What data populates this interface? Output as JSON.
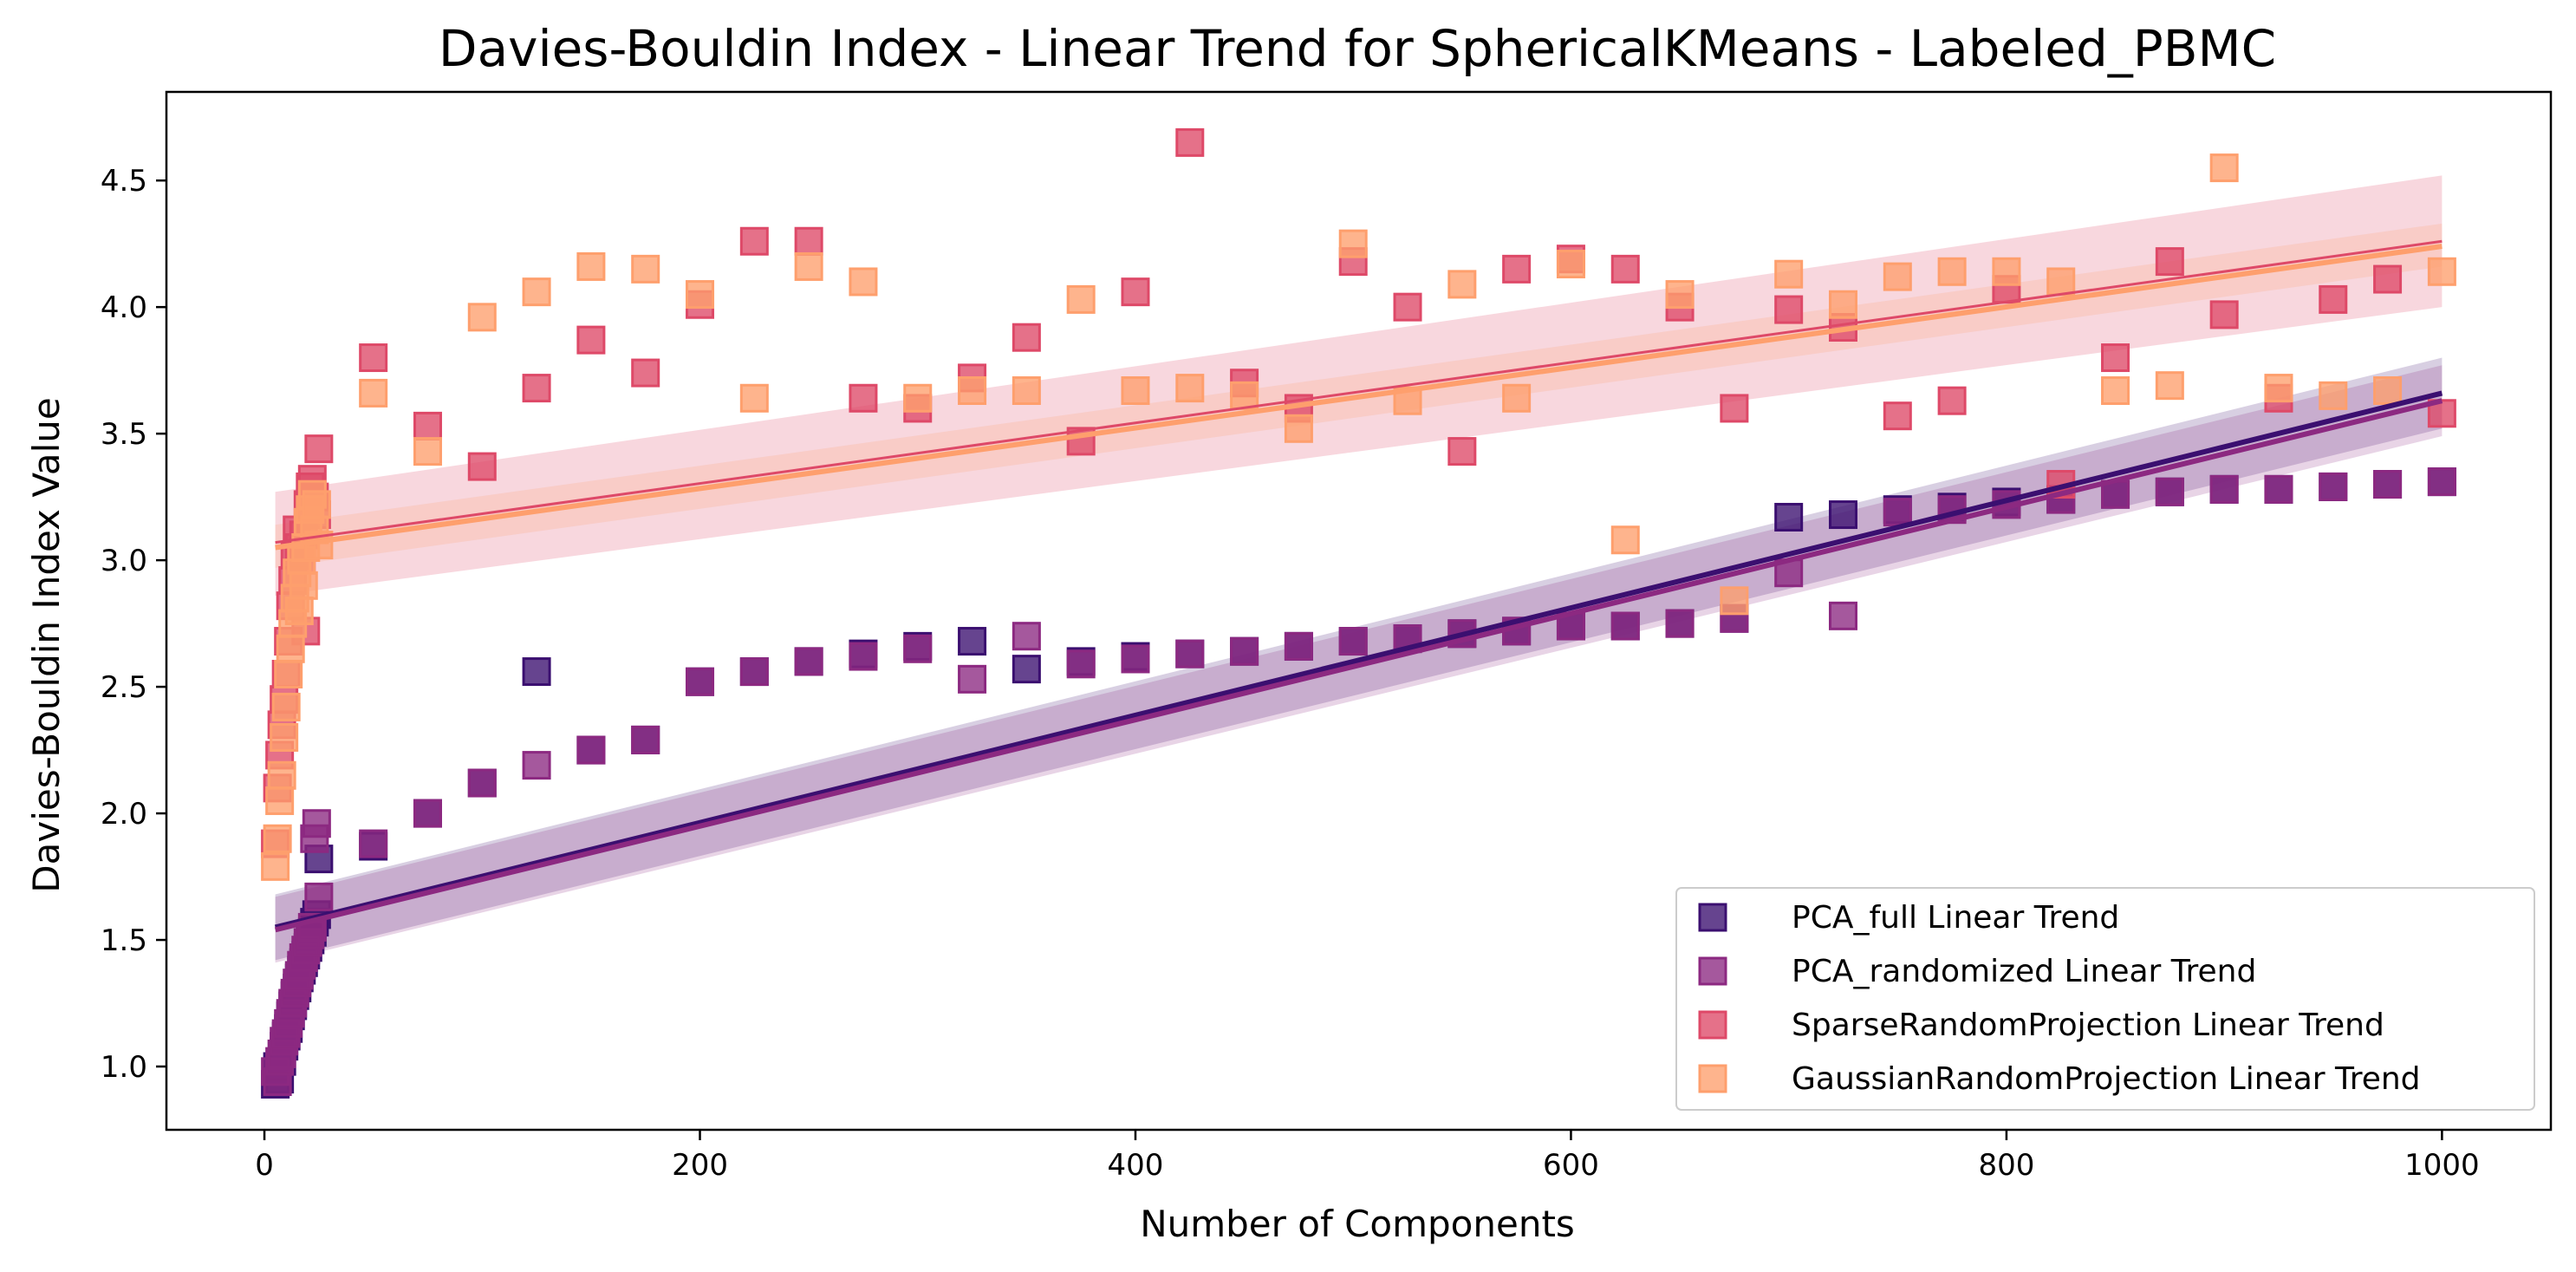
{
  "chart_data": {
    "type": "scatter",
    "title": "Davies-Bouldin Index - Linear Trend for SphericalKMeans - Labeled_PBMC",
    "xlabel": "Number of Components",
    "ylabel": "Davies-Bouldin Index Value",
    "xlim": [
      -45,
      1050
    ],
    "ylim": [
      0.75,
      4.85
    ],
    "xticks": [
      0,
      200,
      400,
      600,
      800,
      1000
    ],
    "yticks": [
      1.0,
      1.5,
      2.0,
      2.5,
      3.0,
      3.5,
      4.0,
      4.5
    ],
    "grid": false,
    "legend_position": "bottom-right",
    "series": [
      {
        "name": "PCA_full Linear Trend",
        "color": "#3b0f70",
        "marker": "square",
        "points": [
          [
            5,
            0.93
          ],
          [
            6,
            1.0
          ],
          [
            7,
            0.95
          ],
          [
            8,
            1.02
          ],
          [
            9,
            1.08
          ],
          [
            10,
            1.12
          ],
          [
            11,
            1.15
          ],
          [
            12,
            1.2
          ],
          [
            13,
            1.24
          ],
          [
            14,
            1.28
          ],
          [
            15,
            1.31
          ],
          [
            16,
            1.35
          ],
          [
            17,
            1.38
          ],
          [
            18,
            1.41
          ],
          [
            19,
            1.44
          ],
          [
            20,
            1.47
          ],
          [
            21,
            1.5
          ],
          [
            22,
            1.53
          ],
          [
            23,
            1.57
          ],
          [
            24,
            1.6
          ],
          [
            25,
            1.82
          ],
          [
            50,
            1.87
          ],
          [
            75,
            2.0
          ],
          [
            100,
            2.12
          ],
          [
            125,
            2.56
          ],
          [
            150,
            2.25
          ],
          [
            175,
            2.29
          ],
          [
            200,
            2.52
          ],
          [
            225,
            2.56
          ],
          [
            250,
            2.6
          ],
          [
            275,
            2.63
          ],
          [
            300,
            2.66
          ],
          [
            325,
            2.68
          ],
          [
            350,
            2.57
          ],
          [
            375,
            2.6
          ],
          [
            400,
            2.62
          ],
          [
            425,
            2.63
          ],
          [
            450,
            2.64
          ],
          [
            475,
            2.66
          ],
          [
            500,
            2.68
          ],
          [
            525,
            2.69
          ],
          [
            550,
            2.71
          ],
          [
            575,
            2.72
          ],
          [
            600,
            2.74
          ],
          [
            625,
            2.74
          ],
          [
            650,
            2.75
          ],
          [
            675,
            2.77
          ],
          [
            700,
            3.17
          ],
          [
            725,
            3.18
          ],
          [
            750,
            3.2
          ],
          [
            775,
            3.21
          ],
          [
            800,
            3.23
          ],
          [
            825,
            3.24
          ],
          [
            850,
            3.26
          ],
          [
            875,
            3.27
          ],
          [
            900,
            3.28
          ],
          [
            925,
            3.28
          ],
          [
            950,
            3.29
          ],
          [
            975,
            3.3
          ],
          [
            1000,
            3.31
          ]
        ],
        "trend": {
          "x": [
            5,
            1000
          ],
          "y": [
            1.55,
            3.66
          ]
        }
      },
      {
        "name": "PCA_randomized Linear Trend",
        "color": "#8c2981",
        "marker": "square",
        "points": [
          [
            5,
            0.98
          ],
          [
            6,
            0.94
          ],
          [
            7,
            1.02
          ],
          [
            8,
            1.05
          ],
          [
            9,
            1.1
          ],
          [
            10,
            1.13
          ],
          [
            11,
            1.17
          ],
          [
            12,
            1.21
          ],
          [
            13,
            1.25
          ],
          [
            14,
            1.29
          ],
          [
            15,
            1.33
          ],
          [
            16,
            1.36
          ],
          [
            17,
            1.4
          ],
          [
            18,
            1.43
          ],
          [
            19,
            1.46
          ],
          [
            20,
            1.49
          ],
          [
            21,
            1.52
          ],
          [
            22,
            1.55
          ],
          [
            23,
            1.9
          ],
          [
            24,
            1.96
          ],
          [
            25,
            1.67
          ],
          [
            50,
            1.88
          ],
          [
            75,
            2.0
          ],
          [
            100,
            2.12
          ],
          [
            125,
            2.19
          ],
          [
            150,
            2.25
          ],
          [
            175,
            2.29
          ],
          [
            200,
            2.52
          ],
          [
            225,
            2.56
          ],
          [
            250,
            2.6
          ],
          [
            275,
            2.62
          ],
          [
            300,
            2.65
          ],
          [
            325,
            2.53
          ],
          [
            350,
            2.7
          ],
          [
            375,
            2.59
          ],
          [
            400,
            2.61
          ],
          [
            425,
            2.63
          ],
          [
            450,
            2.64
          ],
          [
            475,
            2.66
          ],
          [
            500,
            2.68
          ],
          [
            525,
            2.69
          ],
          [
            550,
            2.71
          ],
          [
            575,
            2.72
          ],
          [
            600,
            2.74
          ],
          [
            625,
            2.74
          ],
          [
            650,
            2.75
          ],
          [
            675,
            2.77
          ],
          [
            700,
            2.95
          ],
          [
            725,
            2.78
          ],
          [
            750,
            3.19
          ],
          [
            775,
            3.2
          ],
          [
            800,
            3.22
          ],
          [
            825,
            3.24
          ],
          [
            850,
            3.26
          ],
          [
            875,
            3.27
          ],
          [
            900,
            3.28
          ],
          [
            925,
            3.28
          ],
          [
            950,
            3.29
          ],
          [
            975,
            3.3
          ],
          [
            1000,
            3.31
          ]
        ],
        "trend": {
          "x": [
            5,
            1000
          ],
          "y": [
            1.54,
            3.63
          ]
        }
      },
      {
        "name": "SparseRandomProjection Linear Trend",
        "color": "#de4968",
        "marker": "square",
        "points": [
          [
            5,
            1.88
          ],
          [
            6,
            2.1
          ],
          [
            7,
            2.23
          ],
          [
            8,
            2.35
          ],
          [
            9,
            2.45
          ],
          [
            10,
            2.55
          ],
          [
            11,
            2.68
          ],
          [
            12,
            2.82
          ],
          [
            13,
            2.92
          ],
          [
            14,
            3.02
          ],
          [
            15,
            3.12
          ],
          [
            16,
            3.05
          ],
          [
            17,
            3.0
          ],
          [
            18,
            3.1
          ],
          [
            19,
            2.72
          ],
          [
            20,
            3.22
          ],
          [
            21,
            3.29
          ],
          [
            22,
            3.32
          ],
          [
            23,
            3.25
          ],
          [
            24,
            3.18
          ],
          [
            25,
            3.44
          ],
          [
            50,
            3.8
          ],
          [
            75,
            3.53
          ],
          [
            100,
            3.37
          ],
          [
            125,
            3.68
          ],
          [
            150,
            3.87
          ],
          [
            175,
            3.74
          ],
          [
            200,
            4.01
          ],
          [
            225,
            4.26
          ],
          [
            250,
            4.26
          ],
          [
            275,
            3.64
          ],
          [
            300,
            3.6
          ],
          [
            325,
            3.72
          ],
          [
            350,
            3.88
          ],
          [
            375,
            3.47
          ],
          [
            400,
            4.06
          ],
          [
            425,
            4.65
          ],
          [
            450,
            3.7
          ],
          [
            475,
            3.6
          ],
          [
            500,
            4.18
          ],
          [
            525,
            4.0
          ],
          [
            550,
            3.43
          ],
          [
            575,
            4.15
          ],
          [
            600,
            4.19
          ],
          [
            625,
            4.15
          ],
          [
            650,
            4.0
          ],
          [
            675,
            3.6
          ],
          [
            700,
            3.99
          ],
          [
            725,
            3.92
          ],
          [
            750,
            3.57
          ],
          [
            775,
            3.63
          ],
          [
            800,
            4.07
          ],
          [
            825,
            3.3
          ],
          [
            850,
            3.8
          ],
          [
            875,
            4.18
          ],
          [
            900,
            3.97
          ],
          [
            925,
            3.64
          ],
          [
            950,
            4.03
          ],
          [
            975,
            4.11
          ],
          [
            1000,
            3.58
          ]
        ],
        "trend": {
          "x": [
            5,
            1000
          ],
          "y": [
            3.07,
            4.26
          ]
        },
        "band": {
          "x": [
            5,
            1000
          ],
          "upper": [
            3.27,
            4.52
          ],
          "lower": [
            2.86,
            4.0
          ]
        }
      },
      {
        "name": "GaussianRandomProjection Linear Trend",
        "color": "#fe9f6d",
        "marker": "square",
        "points": [
          [
            5,
            1.79
          ],
          [
            6,
            1.9
          ],
          [
            7,
            2.05
          ],
          [
            8,
            2.15
          ],
          [
            9,
            2.3
          ],
          [
            10,
            2.42
          ],
          [
            11,
            2.55
          ],
          [
            12,
            2.65
          ],
          [
            13,
            2.75
          ],
          [
            14,
            2.85
          ],
          [
            15,
            2.95
          ],
          [
            16,
            2.8
          ],
          [
            17,
            3.0
          ],
          [
            18,
            2.9
          ],
          [
            19,
            3.05
          ],
          [
            20,
            3.15
          ],
          [
            21,
            3.2
          ],
          [
            22,
            3.26
          ],
          [
            23,
            3.12
          ],
          [
            24,
            3.22
          ],
          [
            25,
            3.06
          ],
          [
            50,
            3.66
          ],
          [
            75,
            3.43
          ],
          [
            100,
            3.96
          ],
          [
            125,
            4.06
          ],
          [
            150,
            4.16
          ],
          [
            175,
            4.15
          ],
          [
            200,
            4.05
          ],
          [
            225,
            3.64
          ],
          [
            250,
            4.16
          ],
          [
            275,
            4.1
          ],
          [
            300,
            3.64
          ],
          [
            325,
            3.67
          ],
          [
            350,
            3.67
          ],
          [
            375,
            4.03
          ],
          [
            400,
            3.67
          ],
          [
            425,
            3.68
          ],
          [
            450,
            3.65
          ],
          [
            475,
            3.52
          ],
          [
            500,
            4.25
          ],
          [
            525,
            3.63
          ],
          [
            550,
            4.09
          ],
          [
            575,
            3.64
          ],
          [
            600,
            4.17
          ],
          [
            625,
            3.08
          ],
          [
            650,
            4.05
          ],
          [
            675,
            2.84
          ],
          [
            700,
            4.13
          ],
          [
            725,
            4.01
          ],
          [
            750,
            4.12
          ],
          [
            775,
            4.14
          ],
          [
            800,
            4.14
          ],
          [
            825,
            4.1
          ],
          [
            850,
            3.67
          ],
          [
            875,
            3.69
          ],
          [
            900,
            4.55
          ],
          [
            925,
            3.68
          ],
          [
            950,
            3.65
          ],
          [
            975,
            3.67
          ],
          [
            1000,
            4.14
          ]
        ],
        "trend": {
          "x": [
            5,
            1000
          ],
          "y": [
            3.05,
            4.24
          ]
        },
        "band": {
          "x": [
            5,
            1000
          ],
          "upper": [
            3.14,
            4.33
          ],
          "lower": [
            2.97,
            4.16
          ]
        }
      }
    ]
  }
}
